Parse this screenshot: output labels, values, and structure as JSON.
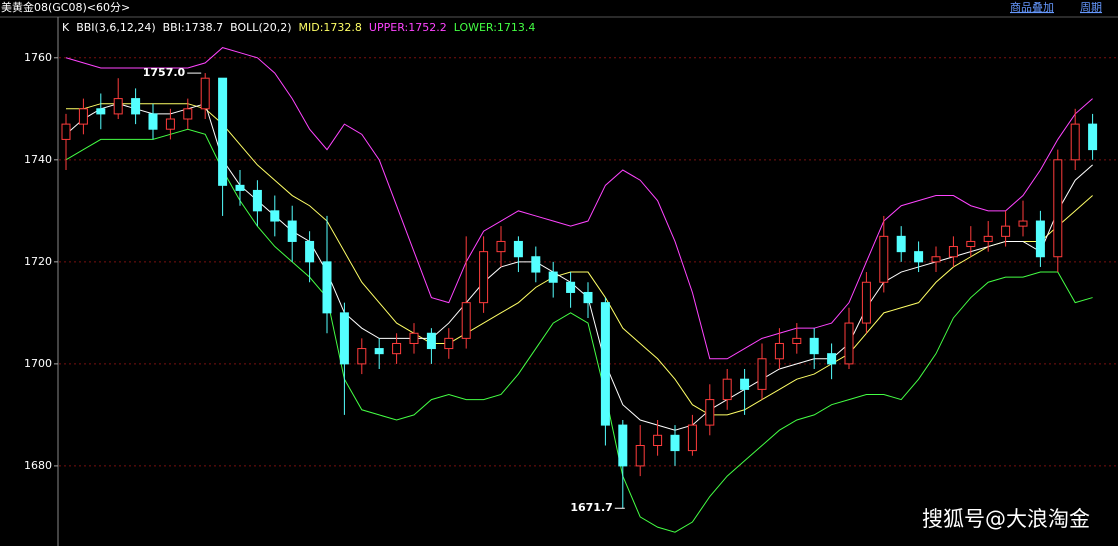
{
  "chart_data": {
    "type": "candlestick",
    "title": "美黄金08(GC08)<60分>",
    "links": [
      "商品叠加",
      "周期"
    ],
    "indicator_labels": [
      {
        "text": "K",
        "color": "#ffffff"
      },
      {
        "text": "BBI(3,6,12,24)",
        "color": "#ffffff"
      },
      {
        "text": "BBI:1738.7",
        "color": "#ffffff"
      },
      {
        "text": "BOLL(20,2)",
        "color": "#ffffff"
      },
      {
        "text": "MID:1732.8",
        "color": "#ffff66"
      },
      {
        "text": "UPPER:1752.2",
        "color": "#ff44ff"
      },
      {
        "text": "LOWER:1713.4",
        "color": "#44ff44"
      }
    ],
    "annotations": [
      "1757.0",
      "1671.7"
    ],
    "watermark": "搜狐号@大浪淘金",
    "ylim": [
      1664.3,
      1767.8
    ],
    "yticks": [
      1680,
      1700,
      1720,
      1740,
      1760
    ],
    "grid": true,
    "up_color": "#ff3c3c",
    "down_color": "#54ffff",
    "open": [
      1744,
      1747,
      1750,
      1749,
      1752,
      1749,
      1746,
      1748,
      1750,
      1756,
      1735,
      1734,
      1730,
      1728,
      1724,
      1720,
      1710,
      1700,
      1703,
      1702,
      1704,
      1706,
      1703,
      1705,
      1712,
      1722,
      1724,
      1721,
      1718,
      1716,
      1714,
      1712,
      1688,
      1680,
      1684,
      1686,
      1683,
      1688,
      1693,
      1697,
      1695,
      1701,
      1704,
      1705,
      1702,
      1700,
      1708,
      1716,
      1725,
      1722,
      1720,
      1721,
      1723,
      1724,
      1725,
      1727,
      1728,
      1721,
      1740,
      1747
    ],
    "high": [
      1749,
      1752,
      1753,
      1756,
      1754,
      1751,
      1750,
      1752,
      1757,
      1756,
      1738,
      1736,
      1733,
      1731,
      1726,
      1729,
      1712,
      1705,
      1705,
      1706,
      1708,
      1707,
      1707,
      1725,
      1725,
      1727,
      1725,
      1723,
      1720,
      1718,
      1716,
      1713,
      1689,
      1688,
      1689,
      1688,
      1690,
      1696,
      1699,
      1699,
      1704,
      1707,
      1708,
      1707,
      1704,
      1711,
      1718,
      1729,
      1727,
      1724,
      1723,
      1725,
      1727,
      1728,
      1730,
      1732,
      1730,
      1742,
      1750,
      1749
    ],
    "low": [
      1738,
      1745,
      1746,
      1748,
      1747,
      1744,
      1744,
      1746,
      1748,
      1729,
      1731,
      1727,
      1725,
      1720,
      1716,
      1706,
      1690,
      1698,
      1699,
      1700,
      1702,
      1700,
      1701,
      1703,
      1710,
      1719,
      1718,
      1716,
      1713,
      1711,
      1709,
      1684,
      1671.7,
      1678,
      1682,
      1680,
      1682,
      1686,
      1691,
      1690,
      1693,
      1699,
      1702,
      1699,
      1697,
      1699,
      1706,
      1714,
      1720,
      1718,
      1718,
      1719,
      1721,
      1722,
      1723,
      1725,
      1719,
      1718,
      1738,
      1740
    ],
    "close": [
      1747,
      1750,
      1749,
      1752,
      1749,
      1746,
      1748,
      1750,
      1756,
      1735,
      1734,
      1730,
      1728,
      1724,
      1720,
      1710,
      1700,
      1703,
      1702,
      1704,
      1706,
      1703,
      1705,
      1712,
      1722,
      1724,
      1721,
      1718,
      1716,
      1714,
      1712,
      1688,
      1680,
      1684,
      1686,
      1683,
      1688,
      1693,
      1697,
      1695,
      1701,
      1704,
      1705,
      1702,
      1700,
      1708,
      1716,
      1725,
      1722,
      1720,
      1721,
      1723,
      1724,
      1725,
      1727,
      1728,
      1721,
      1740,
      1747,
      1742
    ],
    "series": [
      {
        "color": "#ff44ff",
        "values": [
          1760,
          1759,
          1758,
          1758,
          1758,
          1758,
          1758,
          1758,
          1759,
          1762,
          1761,
          1760,
          1757,
          1752,
          1746,
          1742,
          1747,
          1745,
          1740,
          1731,
          1722,
          1713,
          1712,
          1720,
          1726,
          1728,
          1730,
          1729,
          1728,
          1727,
          1728,
          1735,
          1738,
          1736,
          1732,
          1724,
          1714,
          1701,
          1701,
          1703,
          1705,
          1706,
          1707,
          1707,
          1708,
          1712,
          1720,
          1728,
          1731,
          1732,
          1733,
          1733,
          1731,
          1730,
          1730,
          1733,
          1738,
          1744,
          1749,
          1752
        ]
      },
      {
        "color": "#ffff66",
        "values": [
          1750,
          1750,
          1751,
          1751,
          1751,
          1751,
          1751,
          1751,
          1750,
          1747,
          1743,
          1739,
          1736,
          1733,
          1731,
          1728,
          1722,
          1716,
          1712,
          1708,
          1706,
          1704,
          1704,
          1706,
          1708,
          1710,
          1712,
          1715,
          1717,
          1718,
          1718,
          1713,
          1707,
          1704,
          1701,
          1697,
          1692,
          1690,
          1690,
          1691,
          1693,
          1695,
          1697,
          1698,
          1700,
          1702,
          1706,
          1710,
          1711,
          1712,
          1716,
          1719,
          1721,
          1723,
          1724,
          1724,
          1724,
          1727,
          1730,
          1733
        ]
      },
      {
        "color": "#44ff44",
        "values": [
          1740,
          1742,
          1744,
          1744,
          1744,
          1744,
          1745,
          1746,
          1745,
          1738,
          1732,
          1727,
          1723,
          1720,
          1717,
          1713,
          1697,
          1691,
          1690,
          1689,
          1690,
          1693,
          1694,
          1693,
          1693,
          1694,
          1698,
          1703,
          1708,
          1710,
          1708,
          1694,
          1678,
          1670,
          1668,
          1667,
          1669,
          1674,
          1678,
          1681,
          1684,
          1687,
          1689,
          1690,
          1692,
          1693,
          1694,
          1694,
          1693,
          1697,
          1702,
          1709,
          1713,
          1716,
          1717,
          1717,
          1718,
          1718,
          1712,
          1713
        ]
      },
      {
        "color": "#ffffff",
        "values": [
          1745,
          1748,
          1750,
          1751,
          1750,
          1749,
          1749,
          1750,
          1751,
          1740,
          1735,
          1732,
          1729,
          1726,
          1724,
          1718,
          1710,
          1707,
          1705,
          1705,
          1705,
          1705,
          1708,
          1712,
          1716,
          1719,
          1720,
          1720,
          1718,
          1716,
          1713,
          1700,
          1692,
          1689,
          1688,
          1687,
          1688,
          1691,
          1693,
          1695,
          1697,
          1699,
          1700,
          1701,
          1701,
          1704,
          1711,
          1716,
          1718,
          1719,
          1720,
          1721,
          1722,
          1723,
          1724,
          1724,
          1722,
          1730,
          1736,
          1739
        ]
      }
    ]
  }
}
